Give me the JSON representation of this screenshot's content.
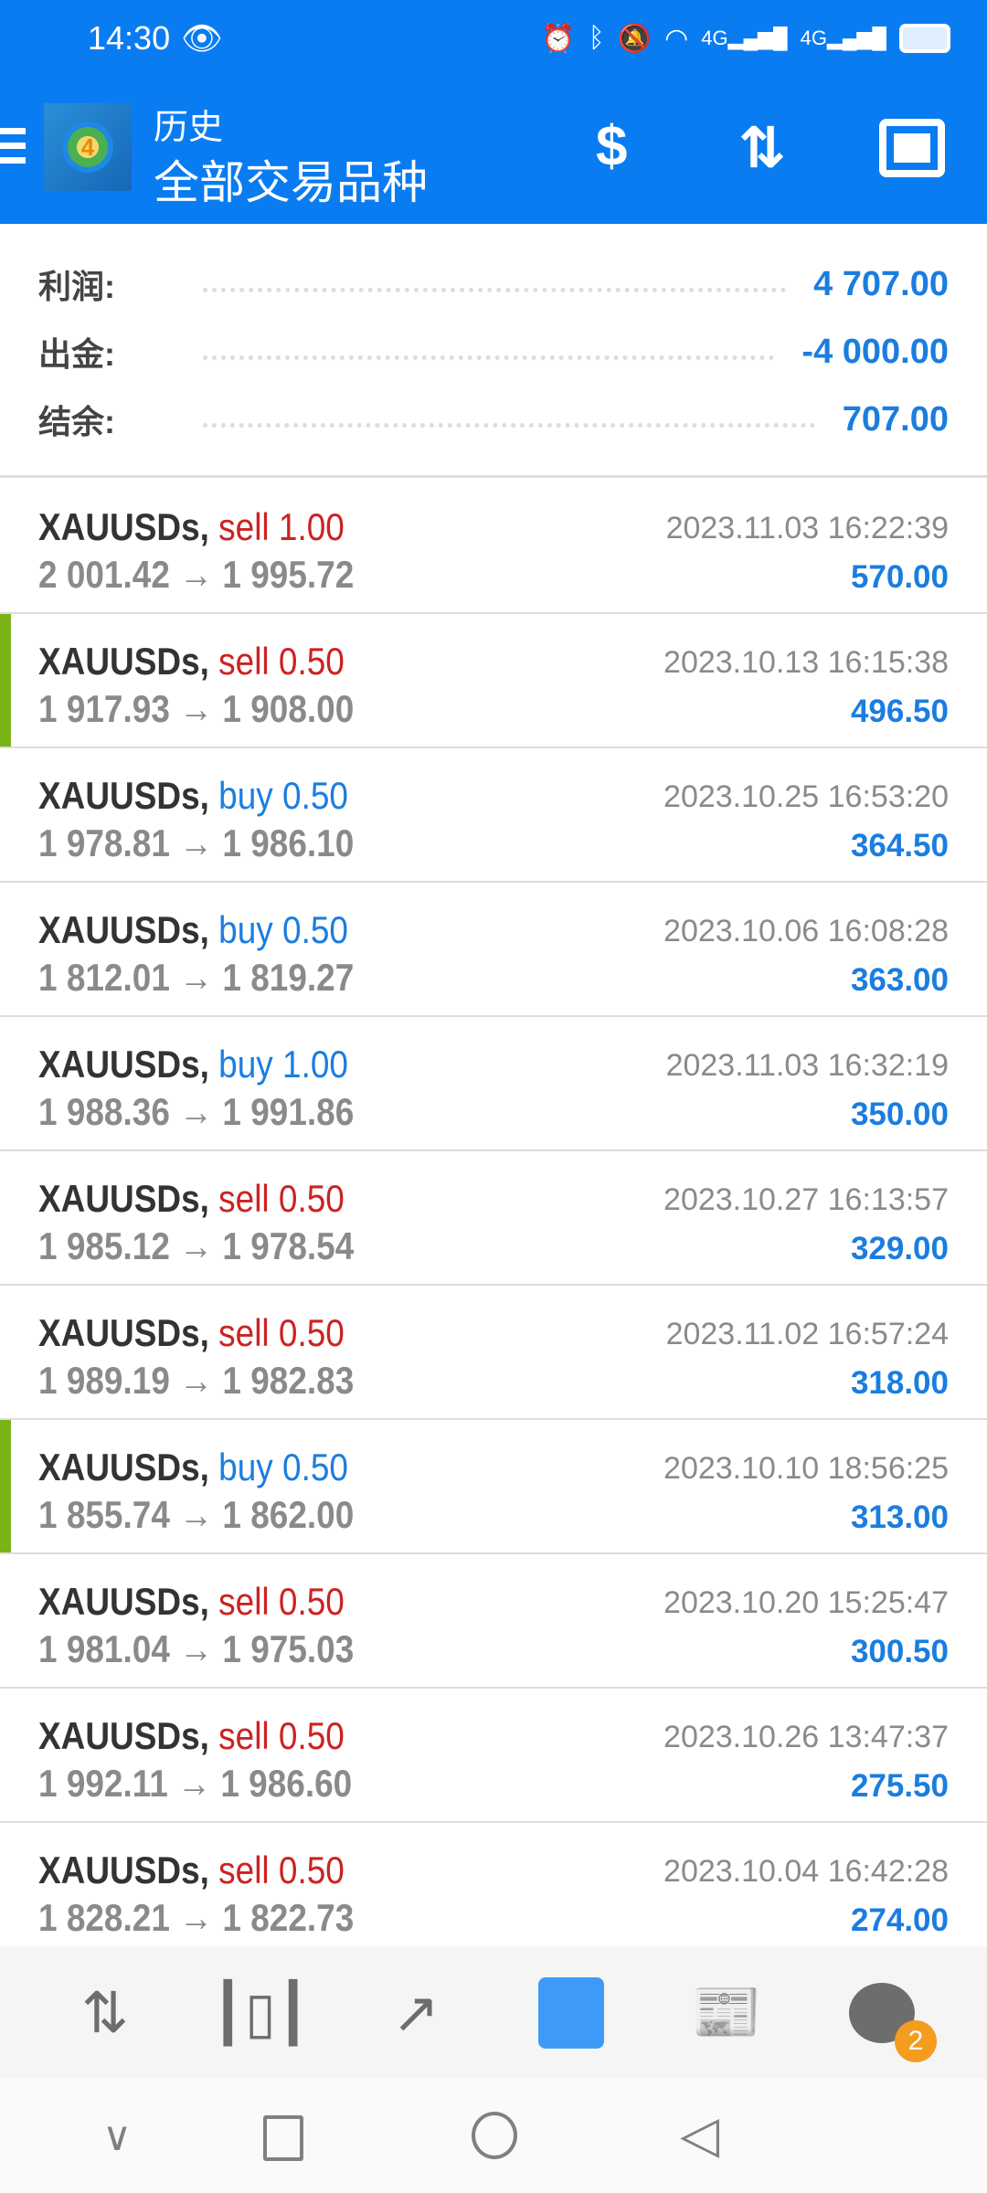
{
  "status": {
    "time": "14:30",
    "icons": [
      "eye-icon",
      "alarm-icon",
      "bluetooth-icon",
      "mute-icon",
      "wifi-icon",
      "signal-4g-icon",
      "signal-4g-icon",
      "battery-icon"
    ]
  },
  "header": {
    "title": "历史",
    "subtitle": "全部交易品种",
    "bg": "#0a7cf1"
  },
  "summary": [
    {
      "label": "利润:",
      "value": "4 707.00"
    },
    {
      "label": "出金:",
      "value": "-4 000.00"
    },
    {
      "label": "结余:",
      "value": "707.00"
    }
  ],
  "trades": [
    {
      "symbol": "XAUUSDs,",
      "side": "sell",
      "volume": "sell 1.00",
      "open": "2 001.42",
      "close": "1 995.72",
      "time": "2023.11.03 16:22:39",
      "profit": "570.00",
      "marked": false
    },
    {
      "symbol": "XAUUSDs,",
      "side": "sell",
      "volume": "sell 0.50",
      "open": "1 917.93",
      "close": "1 908.00",
      "time": "2023.10.13 16:15:38",
      "profit": "496.50",
      "marked": true
    },
    {
      "symbol": "XAUUSDs,",
      "side": "buy",
      "volume": "buy 0.50",
      "open": "1 978.81",
      "close": "1 986.10",
      "time": "2023.10.25 16:53:20",
      "profit": "364.50",
      "marked": false
    },
    {
      "symbol": "XAUUSDs,",
      "side": "buy",
      "volume": "buy 0.50",
      "open": "1 812.01",
      "close": "1 819.27",
      "time": "2023.10.06 16:08:28",
      "profit": "363.00",
      "marked": false
    },
    {
      "symbol": "XAUUSDs,",
      "side": "buy",
      "volume": "buy 1.00",
      "open": "1 988.36",
      "close": "1 991.86",
      "time": "2023.11.03 16:32:19",
      "profit": "350.00",
      "marked": false
    },
    {
      "symbol": "XAUUSDs,",
      "side": "sell",
      "volume": "sell 0.50",
      "open": "1 985.12",
      "close": "1 978.54",
      "time": "2023.10.27 16:13:57",
      "profit": "329.00",
      "marked": false
    },
    {
      "symbol": "XAUUSDs,",
      "side": "sell",
      "volume": "sell 0.50",
      "open": "1 989.19",
      "close": "1 982.83",
      "time": "2023.11.02 16:57:24",
      "profit": "318.00",
      "marked": false
    },
    {
      "symbol": "XAUUSDs,",
      "side": "buy",
      "volume": "buy 0.50",
      "open": "1 855.74",
      "close": "1 862.00",
      "time": "2023.10.10 18:56:25",
      "profit": "313.00",
      "marked": true
    },
    {
      "symbol": "XAUUSDs,",
      "side": "sell",
      "volume": "sell 0.50",
      "open": "1 981.04",
      "close": "1 975.03",
      "time": "2023.10.20 15:25:47",
      "profit": "300.50",
      "marked": false
    },
    {
      "symbol": "XAUUSDs,",
      "side": "sell",
      "volume": "sell 0.50",
      "open": "1 992.11",
      "close": "1 986.60",
      "time": "2023.10.26 13:47:37",
      "profit": "275.50",
      "marked": false
    },
    {
      "symbol": "XAUUSDs,",
      "side": "sell",
      "volume": "sell 0.50",
      "open": "1 828.21",
      "close": "1 822.73",
      "time": "2023.10.04 16:42:28",
      "profit": "274.00",
      "marked": false
    }
  ],
  "arrow": "→",
  "nav": {
    "active": "history",
    "chat_badge": "2",
    "items": [
      "quotes-icon",
      "charts-icon",
      "trade-icon",
      "history-icon",
      "news-icon",
      "chat-icon"
    ]
  }
}
